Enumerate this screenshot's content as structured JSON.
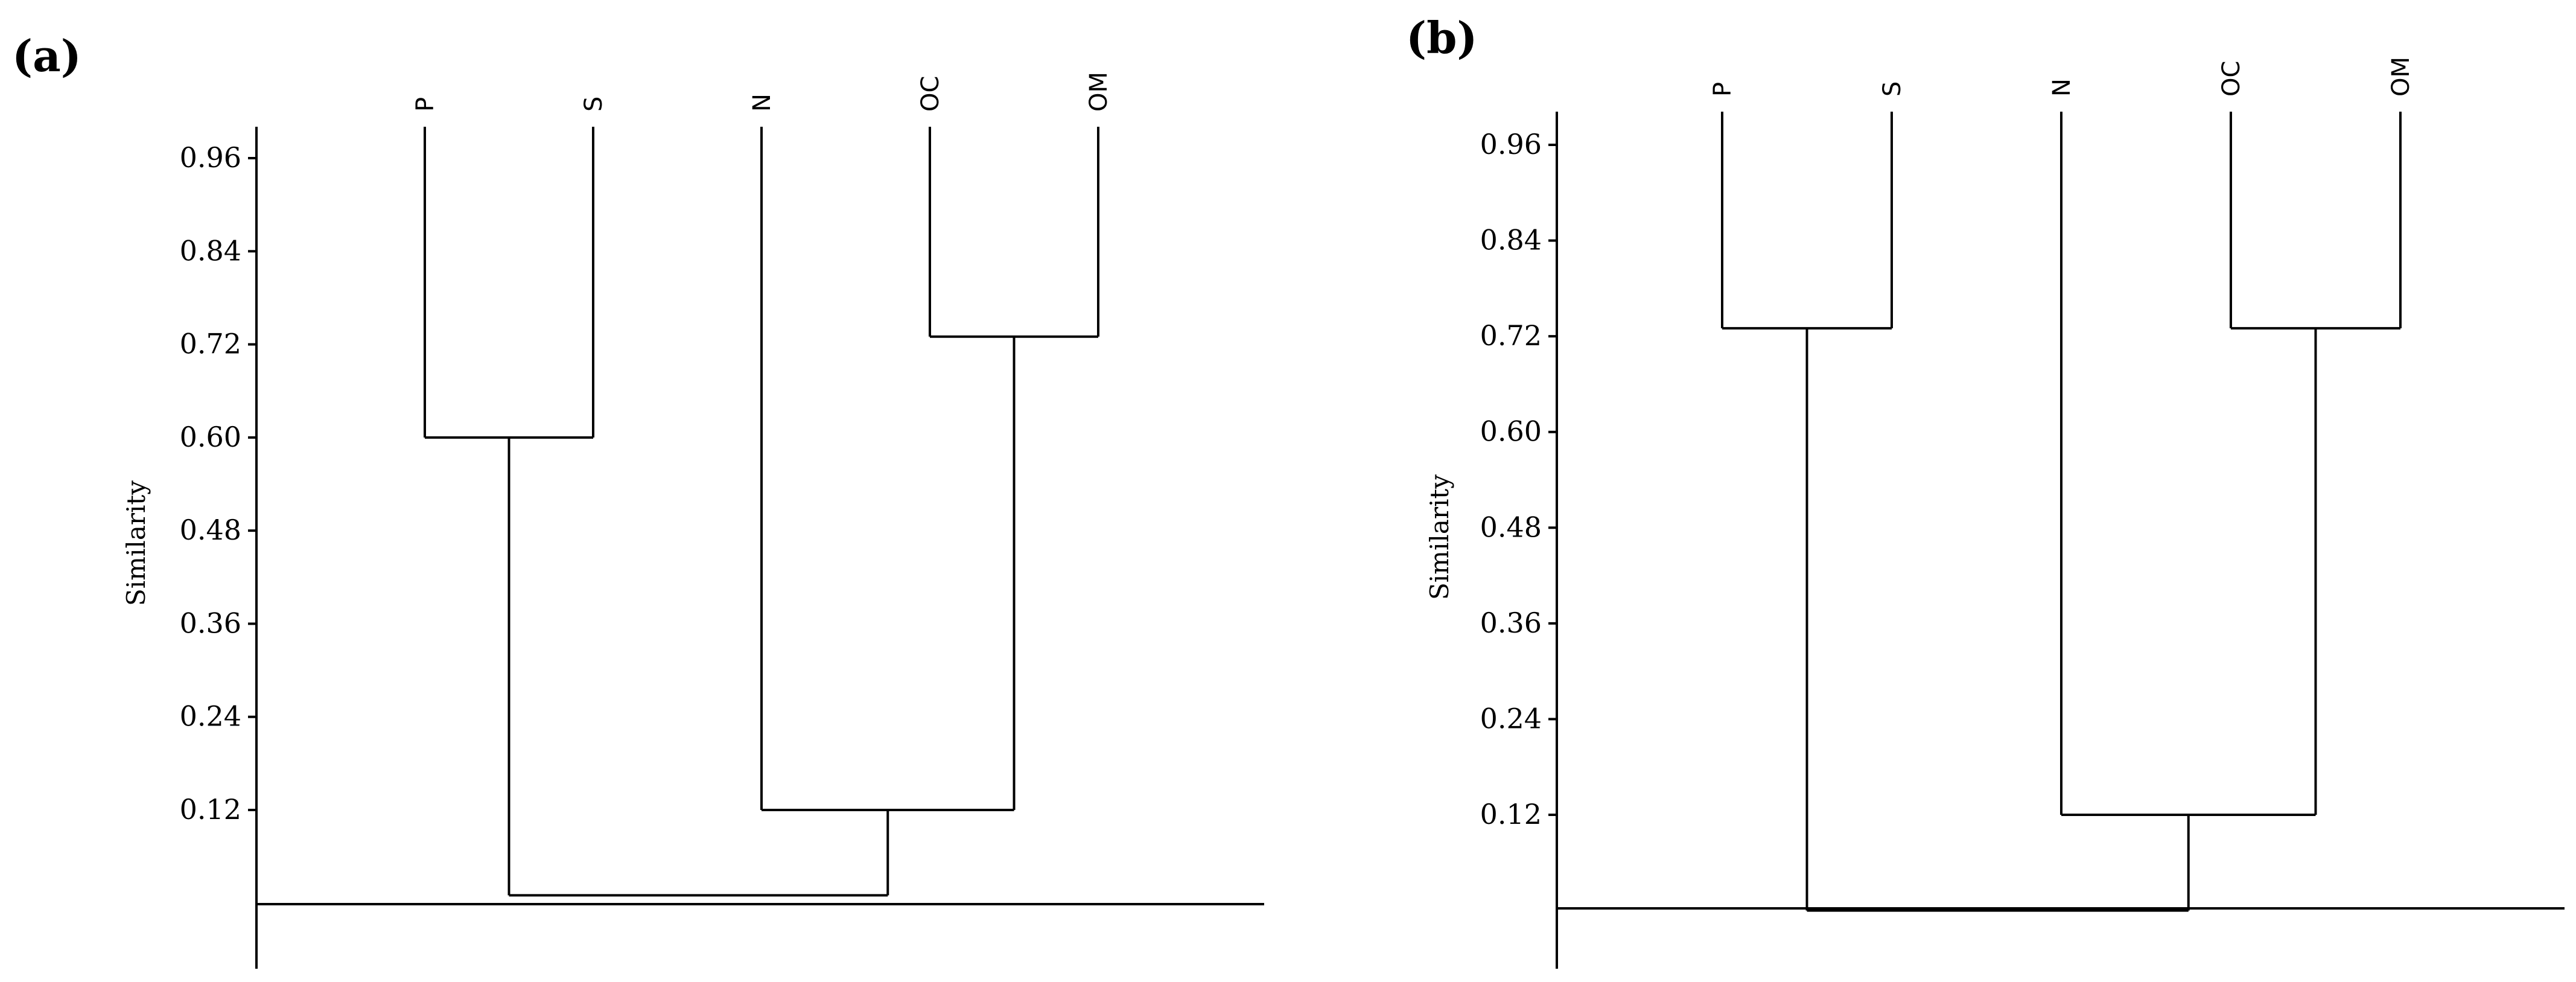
{
  "chart_data": [
    {
      "type": "dendrogram",
      "panel_label": "(a)",
      "ylabel": "Similarity",
      "yticks": [
        "0.96",
        "0.84",
        "0.72",
        "0.60",
        "0.48",
        "0.36",
        "0.24",
        "0.12"
      ],
      "ylim": [
        -0.12,
        1.0
      ],
      "leaves": [
        "P",
        "S",
        "N",
        "OC",
        "OM"
      ],
      "merges": [
        {
          "id": "c1",
          "left": "P",
          "right": "S",
          "similarity": 0.6
        },
        {
          "id": "c2",
          "left": "OC",
          "right": "OM",
          "similarity": 0.73
        },
        {
          "id": "c3",
          "left": "N",
          "right": "c2",
          "similarity": 0.12
        },
        {
          "id": "c4",
          "left": "c1",
          "right": "c3",
          "similarity": 0.01
        }
      ]
    },
    {
      "type": "dendrogram",
      "panel_label": "(b)",
      "ylabel": "Similarity",
      "yticks": [
        "0.96",
        "0.84",
        "0.72",
        "0.60",
        "0.48",
        "0.36",
        "0.24",
        "0.12"
      ],
      "ylim": [
        -0.12,
        1.0
      ],
      "leaves": [
        "P",
        "S",
        "N",
        "OC",
        "OM"
      ],
      "merges": [
        {
          "id": "c1",
          "left": "P",
          "right": "S",
          "similarity": 0.73
        },
        {
          "id": "c2",
          "left": "OC",
          "right": "OM",
          "similarity": 0.73
        },
        {
          "id": "c3",
          "left": "N",
          "right": "c2",
          "similarity": 0.12
        },
        {
          "id": "c4",
          "left": "c1",
          "right": "c3",
          "similarity": 0.0
        }
      ]
    }
  ]
}
